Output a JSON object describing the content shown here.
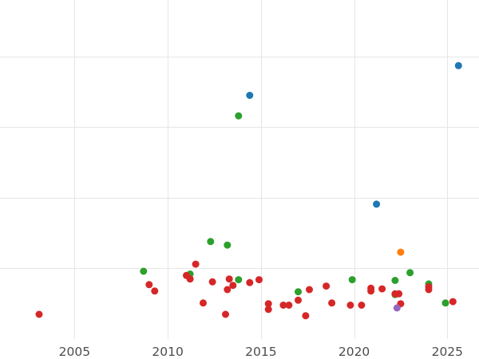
{
  "chart_data": {
    "type": "scatter",
    "title": "",
    "xlabel": "",
    "ylabel": "",
    "xlim": [
      2001.0,
      2026.7
    ],
    "ylim": [
      0,
      4.8
    ],
    "x_ticks": [
      2005,
      2010,
      2015,
      2020,
      2025
    ],
    "y_grid": [
      1,
      2,
      3,
      4
    ],
    "grid": true,
    "colors": {
      "blue": "#1f77b4",
      "orange": "#ff7f0e",
      "green": "#2ca02c",
      "red": "#d62728",
      "purple": "#9467bd"
    },
    "series": [
      {
        "color": "#1f77b4",
        "points": [
          [
            2014.4,
            3.45
          ],
          [
            2021.2,
            1.91
          ],
          [
            2025.6,
            3.87
          ]
        ]
      },
      {
        "color": "#ff7f0e",
        "points": [
          [
            2022.5,
            1.23
          ]
        ]
      },
      {
        "color": "#2ca02c",
        "points": [
          [
            2008.7,
            0.96
          ],
          [
            2011.2,
            0.92
          ],
          [
            2012.3,
            1.38
          ],
          [
            2013.2,
            1.33
          ],
          [
            2013.8,
            0.84
          ],
          [
            2013.8,
            3.16
          ],
          [
            2017.0,
            0.67
          ],
          [
            2019.9,
            0.84
          ],
          [
            2022.2,
            0.83
          ],
          [
            2022.2,
            0.63
          ],
          [
            2023.0,
            0.94
          ],
          [
            2024.0,
            0.78
          ],
          [
            2024.9,
            0.51
          ]
        ]
      },
      {
        "color": "#d62728",
        "points": [
          [
            2003.1,
            0.35
          ],
          [
            2009.0,
            0.77
          ],
          [
            2009.3,
            0.68
          ],
          [
            2011.0,
            0.9
          ],
          [
            2011.2,
            0.85
          ],
          [
            2011.5,
            1.06
          ],
          [
            2011.9,
            0.51
          ],
          [
            2012.4,
            0.81
          ],
          [
            2013.1,
            0.35
          ],
          [
            2013.2,
            0.7
          ],
          [
            2013.3,
            0.85
          ],
          [
            2013.5,
            0.76
          ],
          [
            2014.4,
            0.8
          ],
          [
            2014.9,
            0.84
          ],
          [
            2015.4,
            0.5
          ],
          [
            2015.4,
            0.42
          ],
          [
            2016.2,
            0.48
          ],
          [
            2016.5,
            0.48
          ],
          [
            2017.0,
            0.55
          ],
          [
            2017.4,
            0.33
          ],
          [
            2017.6,
            0.7
          ],
          [
            2018.5,
            0.75
          ],
          [
            2018.8,
            0.51
          ],
          [
            2019.8,
            0.48
          ],
          [
            2020.4,
            0.48
          ],
          [
            2020.9,
            0.72
          ],
          [
            2020.9,
            0.68
          ],
          [
            2021.5,
            0.71
          ],
          [
            2022.2,
            0.64
          ],
          [
            2022.4,
            0.64
          ],
          [
            2022.5,
            0.5
          ],
          [
            2024.0,
            0.74
          ],
          [
            2024.0,
            0.7
          ],
          [
            2025.3,
            0.53
          ]
        ]
      },
      {
        "color": "#9467bd",
        "points": [
          [
            2022.3,
            0.44
          ]
        ]
      }
    ]
  }
}
